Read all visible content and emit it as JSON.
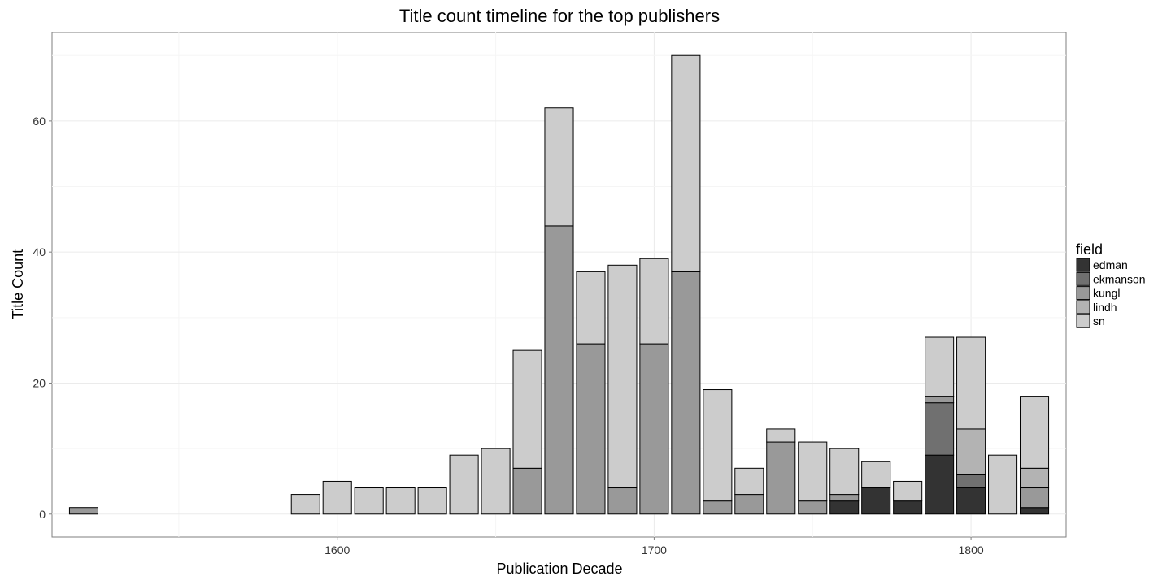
{
  "chart_data": {
    "type": "bar",
    "stacked": true,
    "title": "Title count timeline for the top publishers",
    "xlabel": "Publication Decade",
    "ylabel": "Title Count",
    "xlim": [
      1510,
      1830
    ],
    "ylim": [
      -3.5,
      73.5
    ],
    "x_ticks": [
      1600,
      1700,
      1800
    ],
    "y_ticks": [
      0,
      20,
      40,
      60
    ],
    "grid": true,
    "legend": {
      "title": "field",
      "position": "right",
      "entries": [
        {
          "name": "edman",
          "color": "#333333"
        },
        {
          "name": "ekmanson",
          "color": "#707070"
        },
        {
          "name": "kungl",
          "color": "#999999"
        },
        {
          "name": "lindh",
          "color": "#b3b3b3"
        },
        {
          "name": "sn",
          "color": "#cccccc"
        }
      ]
    },
    "x": [
      1520,
      1590,
      1600,
      1610,
      1620,
      1630,
      1640,
      1650,
      1660,
      1670,
      1680,
      1690,
      1700,
      1710,
      1720,
      1730,
      1740,
      1750,
      1760,
      1770,
      1780,
      1790,
      1800,
      1810,
      1820
    ],
    "series": [
      {
        "name": "edman",
        "values": [
          0,
          0,
          0,
          0,
          0,
          0,
          0,
          0,
          0,
          0,
          0,
          0,
          0,
          0,
          0,
          0,
          0,
          0,
          2,
          4,
          2,
          9,
          4,
          0,
          1
        ]
      },
      {
        "name": "ekmanson",
        "values": [
          0,
          0,
          0,
          0,
          0,
          0,
          0,
          0,
          0,
          0,
          0,
          0,
          0,
          0,
          0,
          0,
          0,
          0,
          0,
          0,
          0,
          8,
          2,
          0,
          0
        ]
      },
      {
        "name": "kungl",
        "values": [
          1,
          0,
          0,
          0,
          0,
          0,
          0,
          0,
          7,
          44,
          26,
          4,
          26,
          37,
          2,
          3,
          11,
          2,
          1,
          0,
          0,
          1,
          0,
          0,
          3
        ]
      },
      {
        "name": "lindh",
        "values": [
          0,
          0,
          0,
          0,
          0,
          0,
          0,
          0,
          0,
          0,
          0,
          0,
          0,
          0,
          0,
          0,
          0,
          0,
          0,
          0,
          0,
          0,
          7,
          0,
          3
        ]
      },
      {
        "name": "sn",
        "values": [
          0,
          3,
          5,
          4,
          4,
          4,
          9,
          10,
          18,
          18,
          11,
          34,
          13,
          33,
          17,
          4,
          2,
          9,
          7,
          4,
          3,
          9,
          14,
          9,
          11
        ]
      }
    ]
  }
}
